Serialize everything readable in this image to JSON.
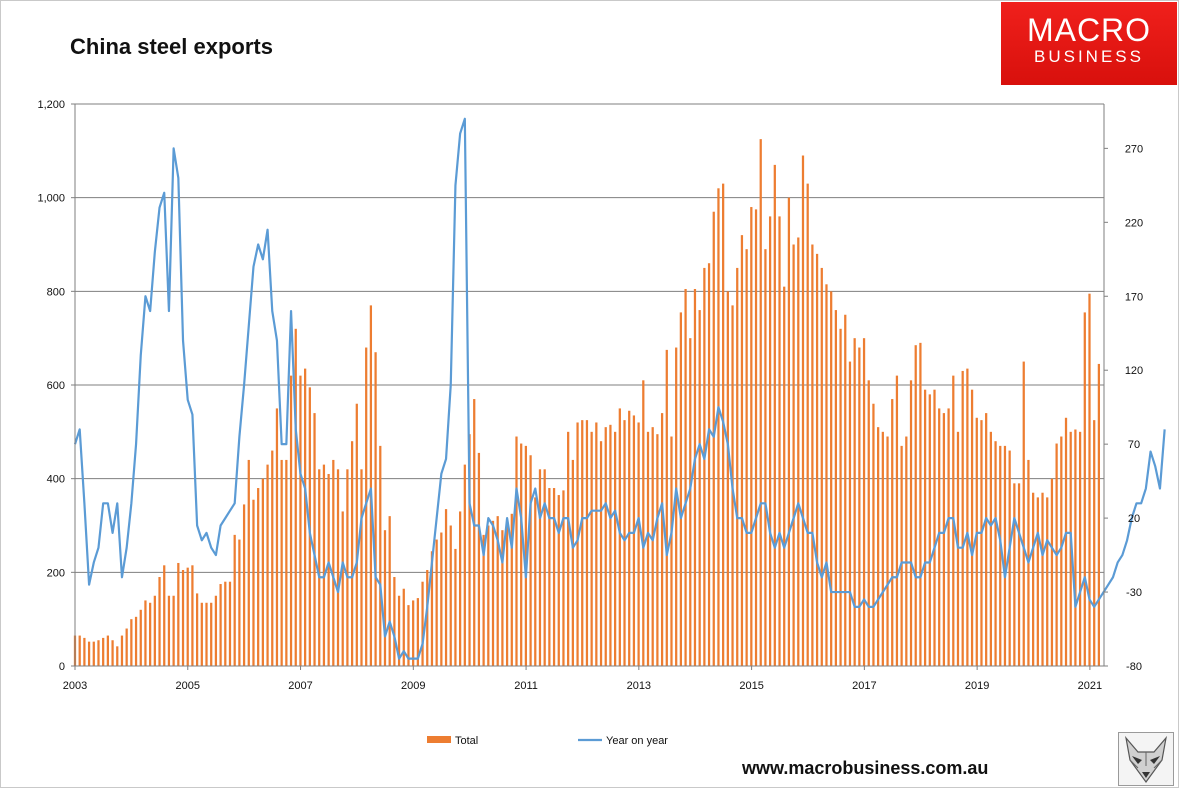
{
  "title": "China steel exports",
  "logo": {
    "line1": "MACRO",
    "line2": "BUSINESS"
  },
  "website": "www.macrobusiness.com.au",
  "colors": {
    "bars": "#ED7D31",
    "line": "#5B9BD5",
    "logo": "#E8170F",
    "grid": "#7f7f7f"
  },
  "icons": {
    "logo_image": "fox-head-icon"
  },
  "chart_data": {
    "type": "bar-line-combo",
    "title": "China steel exports",
    "x_label": "",
    "x_ticks": [
      "2003",
      "2005",
      "2007",
      "2009",
      "2011",
      "2013",
      "2015",
      "2017",
      "2019",
      "2021"
    ],
    "x_start": 2003.0,
    "x_end": 2021.25,
    "y_left": {
      "min": 0,
      "max": 1200,
      "ticks": [
        "0",
        "200",
        "400",
        "600",
        "800",
        "1,000",
        "1,200"
      ]
    },
    "y_right": {
      "min": -80,
      "max": 300,
      "ticks": [
        "-80",
        "-30",
        "20",
        "70",
        "120",
        "170",
        "220",
        "270"
      ]
    },
    "grid": true,
    "legend_position": "bottom",
    "series": [
      {
        "name": "Total",
        "kind": "bar",
        "axis": "left",
        "x_start": 2003.0,
        "x_step": 0.0833,
        "values": [
          65,
          65,
          60,
          52,
          52,
          55,
          60,
          65,
          55,
          42,
          65,
          80,
          100,
          105,
          120,
          140,
          135,
          150,
          190,
          215,
          150,
          150,
          220,
          205,
          210,
          215,
          155,
          135,
          135,
          135,
          150,
          175,
          180,
          180,
          280,
          270,
          345,
          440,
          355,
          380,
          400,
          430,
          460,
          550,
          440,
          440,
          620,
          720,
          620,
          635,
          595,
          540,
          420,
          430,
          410,
          440,
          420,
          330,
          420,
          480,
          560,
          420,
          680,
          770,
          670,
          470,
          290,
          320,
          190,
          150,
          165,
          130,
          140,
          145,
          180,
          205,
          245,
          270,
          285,
          335,
          300,
          250,
          330,
          430,
          495,
          570,
          455,
          280,
          300,
          310,
          320,
          290,
          310,
          325,
          490,
          475,
          470,
          450,
          360,
          420,
          420,
          380,
          380,
          365,
          375,
          500,
          440,
          520,
          525,
          525,
          500,
          520,
          480,
          510,
          515,
          500,
          550,
          525,
          545,
          535,
          520,
          610,
          500,
          510,
          495,
          540,
          675,
          490,
          680,
          755,
          805,
          700,
          805,
          760,
          850,
          860,
          970,
          1020,
          1030,
          800,
          770,
          850,
          920,
          890,
          980,
          975,
          1125,
          890,
          960,
          1070,
          960,
          810,
          1000,
          900,
          915,
          1090,
          1030,
          900,
          880,
          850,
          815,
          800,
          760,
          720,
          750,
          650,
          700,
          680,
          700,
          610,
          560,
          510,
          500,
          490,
          570,
          620,
          470,
          490,
          610,
          685,
          690,
          590,
          580,
          590,
          550,
          540,
          550,
          620,
          500,
          630,
          635,
          590,
          530,
          525,
          540,
          500,
          480,
          470,
          470,
          460,
          390,
          390,
          650,
          440,
          370,
          360,
          370,
          360,
          400,
          475,
          490,
          530,
          500,
          505,
          500,
          755,
          795,
          525,
          645
        ],
        "visible_labels": []
      },
      {
        "name": "Year on year",
        "kind": "line",
        "axis": "right",
        "x_start": 2003.0,
        "x_step": 0.0833,
        "values": [
          70,
          80,
          30,
          -25,
          -10,
          0,
          30,
          30,
          10,
          30,
          -20,
          0,
          30,
          70,
          130,
          170,
          160,
          200,
          230,
          240,
          160,
          270,
          250,
          140,
          100,
          90,
          15,
          5,
          10,
          0,
          -5,
          15,
          20,
          25,
          30,
          75,
          110,
          150,
          190,
          205,
          195,
          215,
          160,
          140,
          70,
          70,
          160,
          80,
          50,
          40,
          10,
          -5,
          -20,
          -20,
          -10,
          -20,
          -30,
          -10,
          -20,
          -20,
          -10,
          20,
          30,
          40,
          -20,
          -25,
          -60,
          -50,
          -60,
          -75,
          -70,
          -75,
          -75,
          -75,
          -65,
          -40,
          -10,
          20,
          50,
          60,
          110,
          245,
          280,
          290,
          30,
          15,
          15,
          -5,
          20,
          15,
          5,
          -10,
          20,
          0,
          40,
          20,
          -20,
          30,
          40,
          20,
          30,
          20,
          20,
          10,
          20,
          20,
          0,
          5,
          20,
          20,
          25,
          25,
          25,
          30,
          20,
          25,
          10,
          5,
          10,
          10,
          20,
          0,
          10,
          5,
          20,
          30,
          -5,
          10,
          40,
          20,
          30,
          40,
          60,
          70,
          60,
          80,
          75,
          95,
          85,
          70,
          40,
          20,
          20,
          10,
          10,
          20,
          30,
          30,
          10,
          0,
          10,
          0,
          10,
          20,
          30,
          20,
          10,
          10,
          -10,
          -20,
          -10,
          -30,
          -30,
          -30,
          -30,
          -30,
          -40,
          -40,
          -35,
          -40,
          -40,
          -35,
          -30,
          -25,
          -20,
          -20,
          -10,
          -10,
          -10,
          -20,
          -20,
          -10,
          -10,
          0,
          10,
          10,
          20,
          20,
          0,
          0,
          10,
          -5,
          10,
          10,
          20,
          15,
          20,
          5,
          -20,
          0,
          20,
          10,
          0,
          -10,
          0,
          10,
          -5,
          5,
          0,
          -5,
          0,
          10,
          10,
          -40,
          -30,
          -20,
          -35,
          -40,
          -35,
          -30,
          -25,
          -20,
          -10,
          -5,
          5,
          20,
          30,
          30,
          40,
          65,
          55,
          40,
          80
        ],
        "visible_labels": []
      }
    ]
  }
}
